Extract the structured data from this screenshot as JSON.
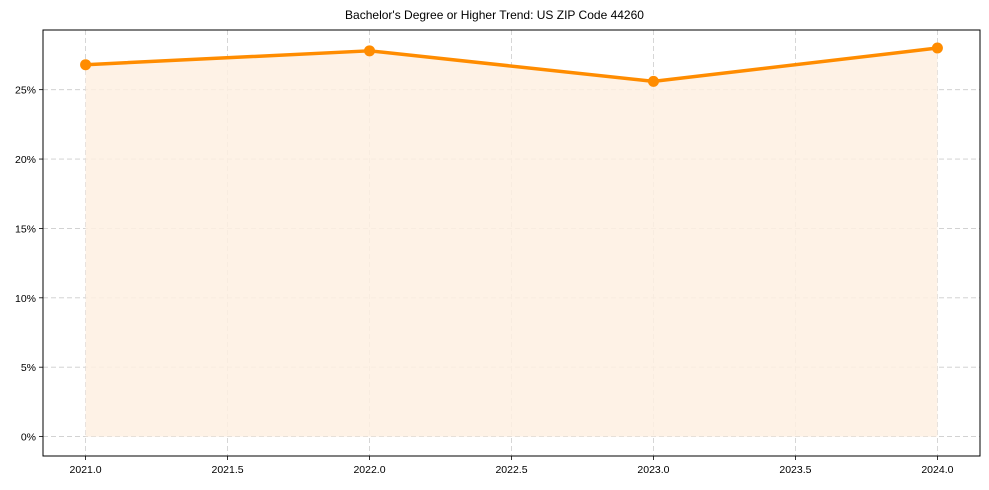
{
  "chart_data": {
    "type": "line",
    "title": "Bachelor's Degree or Higher Trend: US ZIP Code 44260",
    "xlabel": "",
    "ylabel": "",
    "x": [
      2021,
      2022,
      2023,
      2024
    ],
    "series": [
      {
        "name": "Bachelor's Degree or Higher",
        "values": [
          26.8,
          27.8,
          25.6,
          28.0
        ],
        "unit": "%"
      }
    ],
    "x_ticks": [
      "2021.0",
      "2021.5",
      "2022.0",
      "2022.5",
      "2023.0",
      "2023.5",
      "2024.0"
    ],
    "y_ticks": [
      "0%",
      "5%",
      "10%",
      "15%",
      "20%",
      "25%"
    ],
    "xlim": [
      2020.85,
      2024.15
    ],
    "ylim": [
      -1.4,
      29.3
    ],
    "grid": true,
    "grid_style": "dashed",
    "legend": null,
    "fill_under_line": true,
    "colors": {
      "line": "#FF8C00",
      "marker": "#FF8C00",
      "fill": "#FEF0E2",
      "grid": "#CCCCCC",
      "axis": "#000000"
    }
  }
}
